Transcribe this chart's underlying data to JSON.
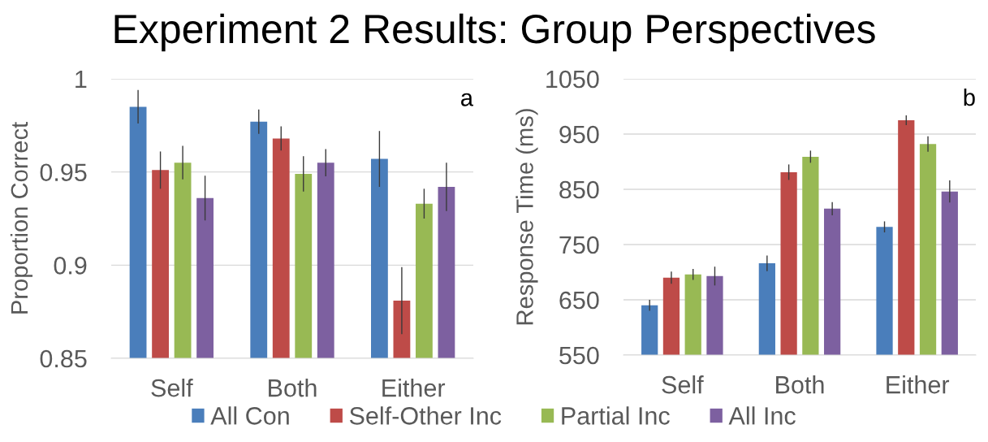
{
  "chart_data": [
    {
      "type": "bar",
      "title": "Experiment 2 Results: Group Perspectives",
      "ylabel": "Proportion Correct",
      "categories": [
        "Self",
        "Both",
        "Either"
      ],
      "series": [
        {
          "name": "All Con",
          "color": "#4a7ebb",
          "values": [
            0.985,
            0.977,
            0.957
          ],
          "errors": [
            0.009,
            0.0065,
            0.015
          ]
        },
        {
          "name": "Self-Other Inc",
          "color": "#be4b48",
          "values": [
            0.951,
            0.968,
            0.881
          ],
          "errors": [
            0.01,
            0.0065,
            0.018
          ]
        },
        {
          "name": "Partial Inc",
          "color": "#98b954",
          "values": [
            0.955,
            0.949,
            0.933
          ],
          "errors": [
            0.009,
            0.0095,
            0.008
          ]
        },
        {
          "name": "All Inc",
          "color": "#7d60a0",
          "values": [
            0.936,
            0.955,
            0.942
          ],
          "errors": [
            0.012,
            0.0073,
            0.013
          ]
        }
      ],
      "ylim": [
        0.85,
        1
      ],
      "yticks": [
        0.85,
        0.9,
        0.95,
        1
      ],
      "grid": "y",
      "legend": "bottom",
      "annotations": [
        "a"
      ]
    },
    {
      "type": "bar",
      "ylabel": "Response Time (ms)",
      "categories": [
        "Self",
        "Both",
        "Either"
      ],
      "series": [
        {
          "color": "#4a7ebb",
          "values": [
            640,
            716,
            782
          ],
          "errors": [
            10,
            14,
            10
          ]
        },
        {
          "color": "#be4b48",
          "values": [
            690,
            881,
            975
          ],
          "errors": [
            11,
            14,
            9
          ]
        },
        {
          "color": "#98b954",
          "values": [
            696,
            909,
            932
          ],
          "errors": [
            10,
            11,
            14
          ]
        },
        {
          "color": "#7d60a0",
          "values": [
            693,
            815,
            846
          ],
          "errors": [
            17,
            12,
            20
          ]
        }
      ],
      "ylim": [
        550,
        1050
      ],
      "yticks": [
        550,
        650,
        750,
        850,
        950,
        1050
      ],
      "grid": "y",
      "annotations": [
        "b"
      ]
    }
  ]
}
